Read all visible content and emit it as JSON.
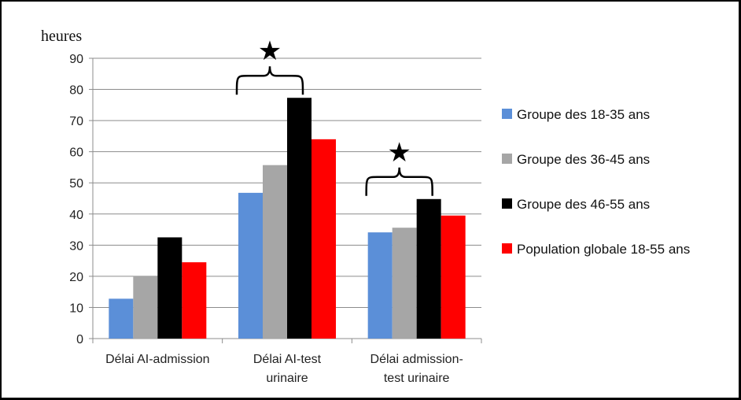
{
  "chart_data": {
    "type": "bar",
    "unit_label": "heures",
    "categories": [
      [
        "Délai AI-admission"
      ],
      [
        "Délai AI-test",
        "urinaire"
      ],
      [
        "Délai admission-",
        "test urinaire"
      ]
    ],
    "series": [
      {
        "name": "Groupe des 18-35 ans",
        "color": "#5B8FD8",
        "values": [
          12.8,
          46.8,
          34.1
        ]
      },
      {
        "name": "Groupe des 36-45 ans",
        "color": "#A6A6A6",
        "values": [
          20.0,
          55.7,
          35.6
        ]
      },
      {
        "name": "Groupe des 46-55 ans",
        "color": "#000000",
        "values": [
          32.5,
          77.3,
          44.8
        ]
      },
      {
        "name": "Population globale 18-55 ans",
        "color": "#FF0000",
        "values": [
          24.5,
          64.0,
          39.5
        ]
      }
    ],
    "ylim": [
      0,
      90
    ],
    "yticks": [
      "0",
      "10",
      "20",
      "30",
      "40",
      "50",
      "60",
      "70",
      "80",
      "90"
    ],
    "grid": true,
    "legend_position": "right",
    "significance_marks": [
      {
        "category_index": 1,
        "symbol": "★"
      },
      {
        "category_index": 2,
        "symbol": "★"
      }
    ]
  }
}
